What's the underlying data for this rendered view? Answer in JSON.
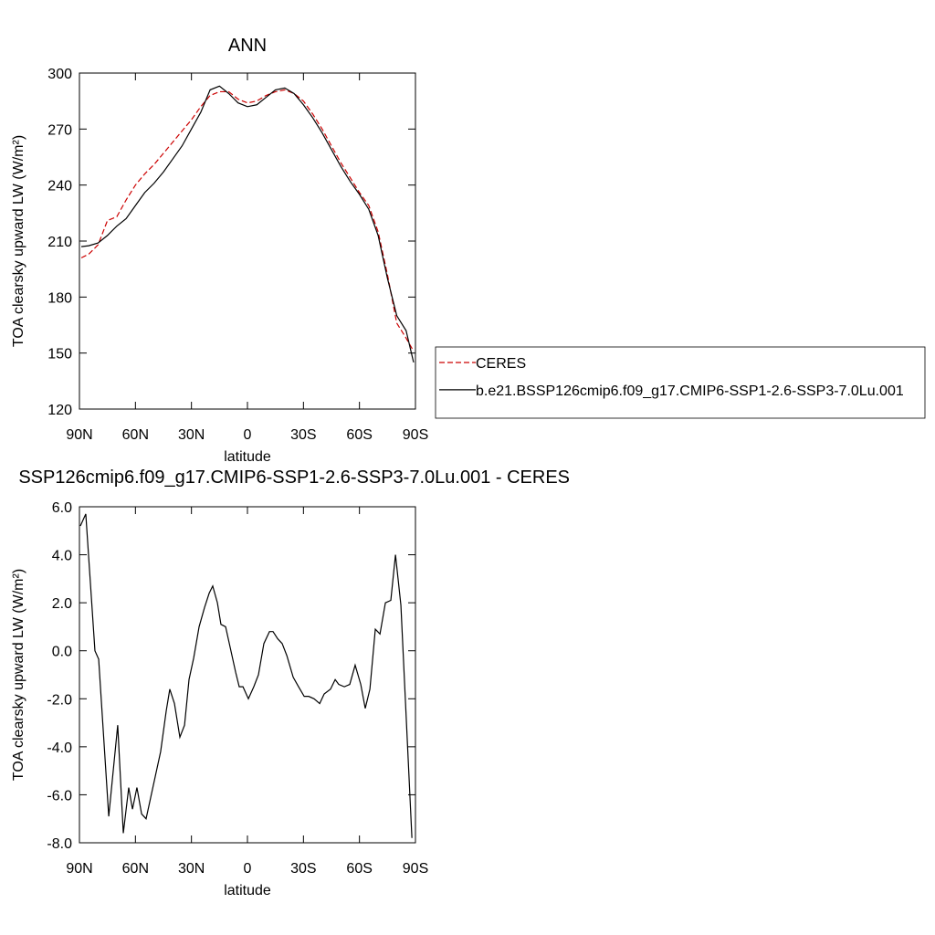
{
  "chart_data": [
    {
      "type": "line",
      "title": "ANN",
      "xlabel": "latitude",
      "ylabel": "TOA clearsky upward LW (W/m²)",
      "x": [
        89,
        85,
        80,
        75,
        70,
        65,
        60,
        55,
        50,
        45,
        40,
        35,
        30,
        25,
        20,
        15,
        10,
        5,
        0,
        -5,
        -10,
        -15,
        -20,
        -25,
        -30,
        -35,
        -40,
        -45,
        -50,
        -55,
        -60,
        -65,
        -70,
        -75,
        -80,
        -85,
        -89
      ],
      "series": [
        {
          "name": "CERES",
          "color": "#cc0000",
          "dashed": true,
          "values": [
            201,
            203,
            208,
            221,
            223,
            232,
            240,
            246,
            251,
            257,
            263,
            269,
            275,
            282,
            288,
            290,
            290,
            286,
            284,
            285,
            288,
            290,
            291,
            289,
            285,
            278,
            270,
            261,
            252,
            244,
            236,
            229,
            215,
            192,
            166,
            158,
            151
          ]
        },
        {
          "name": "b.e21.BSSP126cmip6.f09_g17.CMIP6-SSP1-2.6-SSP3-7.0Lu.001",
          "color": "#000000",
          "dashed": false,
          "values": [
            207,
            207.5,
            209,
            213,
            218,
            222,
            229,
            236,
            241,
            247,
            254,
            261,
            270,
            279,
            291,
            293,
            289,
            284,
            282,
            283,
            287,
            291,
            292,
            289,
            283,
            276,
            268,
            259,
            250,
            242,
            235,
            227,
            213,
            190,
            170,
            162,
            145
          ]
        }
      ],
      "xlim": [
        90,
        -90
      ],
      "ylim": [
        120,
        300
      ],
      "xticks": [
        {
          "value": 90,
          "label": "90N"
        },
        {
          "value": 60,
          "label": "60N"
        },
        {
          "value": 30,
          "label": "30N"
        },
        0,
        {
          "value": -30,
          "label": "30S"
        },
        {
          "value": -60,
          "label": "60S"
        },
        {
          "value": -90,
          "label": "90S"
        }
      ],
      "yticks": [
        120,
        150,
        180,
        210,
        240,
        270,
        300
      ],
      "legend": "right"
    },
    {
      "type": "line",
      "title": "SSP126cmip6.f09_g17.CMIP6-SSP1-2.6-SSP3-7.0Lu.001 - CERES",
      "xlabel": "latitude",
      "ylabel": "TOA clearsky upward LW (W/m²)",
      "x": [
        89.5,
        86.6,
        81.7,
        79.7,
        74.3,
        69.5,
        66.5,
        63.6,
        61.6,
        59.2,
        56.7,
        54.3,
        46.5,
        43.5,
        41.6,
        39.1,
        36.2,
        33.7,
        31.3,
        28.8,
        25.9,
        23.0,
        20.5,
        18.6,
        16.1,
        14.2,
        11.7,
        6.3,
        4.4,
        2.4,
        -0.5,
        -3.4,
        -5.9,
        -8.8,
        -11.8,
        -13.7,
        -16.2,
        -18.6,
        -21.1,
        -24.5,
        -27.4,
        -30.4,
        -32.8,
        -35.7,
        -38.7,
        -41.1,
        -44.5,
        -47.0,
        -48.9,
        -51.9,
        -54.8,
        -57.7,
        -60.7,
        -63.1,
        -65.6,
        -68.5,
        -71.0,
        -73.9,
        -76.8,
        -79.3,
        -82.2,
        -88.1
      ],
      "series": [
        {
          "color": "#000000",
          "dashed": false,
          "values": [
            5.2,
            5.7,
            0.0,
            -0.35,
            -6.9,
            -3.1,
            -7.6,
            -5.7,
            -6.6,
            -5.7,
            -6.8,
            -7.0,
            -4.2,
            -2.5,
            -1.6,
            -2.2,
            -3.6,
            -3.1,
            -1.2,
            -0.3,
            1.0,
            1.8,
            2.4,
            2.7,
            2.0,
            1.1,
            1.0,
            -0.9,
            -1.5,
            -1.5,
            -2.0,
            -1.5,
            -1.0,
            0.3,
            0.8,
            0.8,
            0.5,
            0.3,
            -0.2,
            -1.1,
            -1.5,
            -1.9,
            -1.9,
            -2.0,
            -2.2,
            -1.8,
            -1.6,
            -1.2,
            -1.4,
            -1.5,
            -1.4,
            -0.6,
            -1.4,
            -2.4,
            -1.6,
            0.9,
            0.7,
            2.0,
            2.1,
            4.0,
            1.9,
            -7.8
          ]
        }
      ],
      "xlim": [
        90,
        -90
      ],
      "ylim": [
        -8,
        6
      ],
      "xticks": [
        {
          "value": 90,
          "label": "90N"
        },
        {
          "value": 60,
          "label": "60N"
        },
        {
          "value": 30,
          "label": "30N"
        },
        0,
        {
          "value": -30,
          "label": "30S"
        },
        {
          "value": -60,
          "label": "60S"
        },
        {
          "value": -90,
          "label": "90S"
        }
      ],
      "yticks": [
        {
          "value": -8,
          "label": "-8.0"
        },
        {
          "value": -6,
          "label": "-6.0"
        },
        {
          "value": -4,
          "label": "-4.0"
        },
        {
          "value": -2,
          "label": "-2.0"
        },
        {
          "value": 0,
          "label": "0.0"
        },
        {
          "value": 2,
          "label": "2.0"
        },
        {
          "value": 4,
          "label": "4.0"
        },
        {
          "value": 6,
          "label": "6.0"
        }
      ]
    }
  ]
}
